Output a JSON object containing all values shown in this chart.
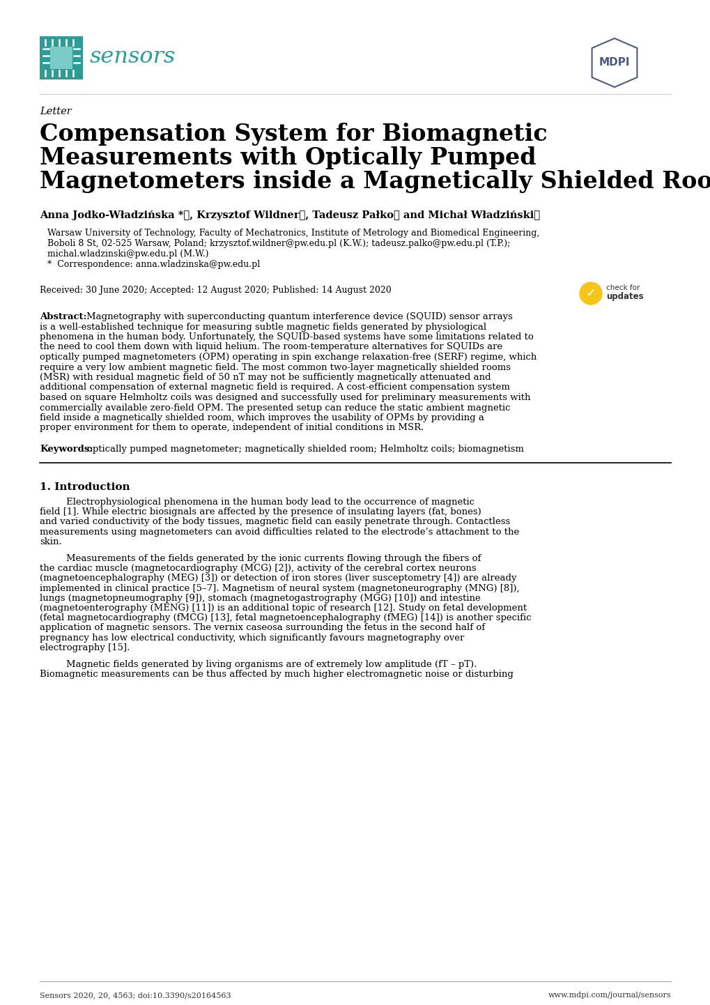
{
  "bg_color": "#ffffff",
  "sensors_color": "#2d9c96",
  "mdpi_color": "#4a5a80",
  "letter_text": "Letter",
  "title_line1": "Compensation System for Biomagnetic",
  "title_line2": "Measurements with Optically Pumped",
  "title_line3": "Magnetometers inside a Magnetically Shielded Room",
  "authors": "Anna Jodko-Władzińska *ⓘ, Krzysztof Wildnerⓘ, Tadeusz Pałkoⓘ and Michał Władzińskiⓘ",
  "affiliation1": "Warsaw University of Technology, Faculty of Mechatronics, Institute of Metrology and Biomedical Engineering,",
  "affiliation2": "Boboli 8 St, 02-525 Warsaw, Poland; krzysztof.wildner@pw.edu.pl (K.W.); tadeusz.palko@pw.edu.pl (T.P.);",
  "affiliation3": "michal.wladzinski@pw.edu.pl (M.W.)",
  "correspondence": "*  Correspondence: anna.wladzinska@pw.edu.pl",
  "received": "Received: 30 June 2020; Accepted: 12 August 2020; Published: 14 August 2020",
  "abstract_label": "Abstract:",
  "abstract_body": "Magnetography with superconducting quantum interference device (SQUID) sensor arrays is a well-established technique for measuring subtle magnetic fields generated by physiological phenomena in the human body.  Unfortunately, the SQUID-based systems have some limitations related to the need to cool them down with liquid helium.  The room-temperature alternatives for SQUIDs are optically pumped magnetometers (OPM) operating in spin exchange relaxation-free (SERF) regime, which require a very low ambient magnetic field.  The most common two-layer magnetically shielded rooms (MSR) with residual magnetic field of 50 nT may not be sufficiently magnetically attenuated and additional compensation of external magnetic field is required.  A cost-efficient compensation system based on square Helmholtz coils was designed and successfully used for preliminary measurements with commercially available zero-field OPM. The presented setup can reduce the static ambient magnetic field inside a magnetically shielded room, which improves the usability of OPMs by providing a proper environment for them to operate, independent of initial conditions in MSR.",
  "keywords_label": "Keywords:",
  "keywords_body": "optically pumped magnetometer; magnetically shielded room; Helmholtz coils; biomagnetism",
  "section_title": "1. Introduction",
  "intro_para1": "Electrophysiological phenomena in the human body lead to the occurrence of magnetic field [1]. While electric biosignals are affected by the presence of insulating layers (fat, bones) and varied conductivity of the body tissues, magnetic field can easily penetrate through. Contactless measurements using magnetometers can avoid difficulties related to the electrode’s attachment to the skin.",
  "intro_para2": "Measurements of the fields generated by the ionic currents flowing through the fibers of the cardiac muscle (magnetocardiography (MCG) [2]), activity of the cerebral cortex neurons (magnetoencephalography (MEG) [3]) or detection of iron stores (liver susceptometry [4]) are already implemented in clinical practice [5–7]. Magnetism of neural system (magnetoneurography (MNG) [8]), lungs (magnetopneumography [9]), stomach (magnetogastrography (MGG) [10]) and intestine (magnetoenterography (MENG) [11]) is an additional topic of research [12]. Study on fetal development (fetal magnetocardiography (fMCG) [13], fetal magnetoencephalography (fMEG) [14]) is another specific application of magnetic sensors. The vernix caseosa surrounding the fetus in the second half of pregnancy has low electrical conductivity, which significantly favours magnetography over electrography [15].",
  "intro_para3": "Magnetic fields generated by living organisms are of extremely low amplitude (fT – pT). Biomagnetic measurements can be thus affected by much higher electromagnetic noise or disturbing",
  "footer_left": "Sensors 2020, 20, 4563; doi:10.3390/s20164563",
  "footer_right": "www.mdpi.com/journal/sensors"
}
